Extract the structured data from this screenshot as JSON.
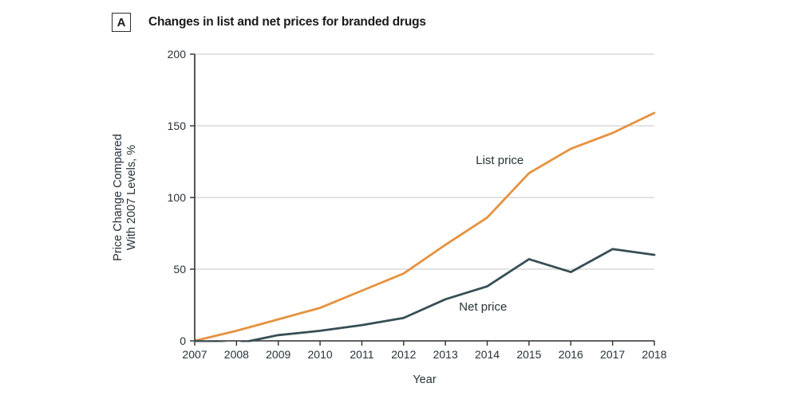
{
  "panel": {
    "label": "A",
    "title": "Changes in list and net prices for branded drugs"
  },
  "colors": {
    "list_price": "#E6913E",
    "net_price": "#374E55",
    "grid": "#D8D8D8",
    "axis": "#2E2E2E",
    "text": "#263238",
    "background": "#FFFFFF"
  },
  "chart_data": {
    "type": "line",
    "title": "Changes in list and net prices for branded drugs",
    "xlabel": "Year",
    "ylabel": "Price Change Compared With 2007 Levels, %",
    "ylabel_lines": [
      "Price Change Compared",
      "With 2007 Levels, %"
    ],
    "x": [
      2007,
      2008,
      2009,
      2010,
      2011,
      2012,
      2013,
      2014,
      2015,
      2016,
      2017,
      2018
    ],
    "xtick_labels": [
      "2007",
      "2008",
      "2009",
      "2010",
      "2011",
      "2012",
      "2013",
      "2014",
      "2015",
      "2016",
      "2017",
      "2018"
    ],
    "ylim": [
      0,
      200
    ],
    "yticks": [
      0,
      50,
      100,
      150,
      200
    ],
    "grid": "horizontal gridlines at 50, 100, 150, 200",
    "legend_position": "inline labels next to lines",
    "series": [
      {
        "name": "List price",
        "color": "#E6913E",
        "values": [
          0,
          7,
          15,
          23,
          35,
          47,
          67,
          86,
          117,
          134,
          145,
          159
        ]
      },
      {
        "name": "Net price",
        "color": "#374E55",
        "values": [
          0,
          -2,
          4,
          7,
          11,
          16,
          29,
          38,
          57,
          48,
          64,
          60
        ]
      }
    ],
    "annotations": [
      {
        "text": "List price",
        "x": 2014.3,
        "y": 126
      },
      {
        "text": "Net price",
        "x": 2013.9,
        "y": 24
      }
    ]
  }
}
